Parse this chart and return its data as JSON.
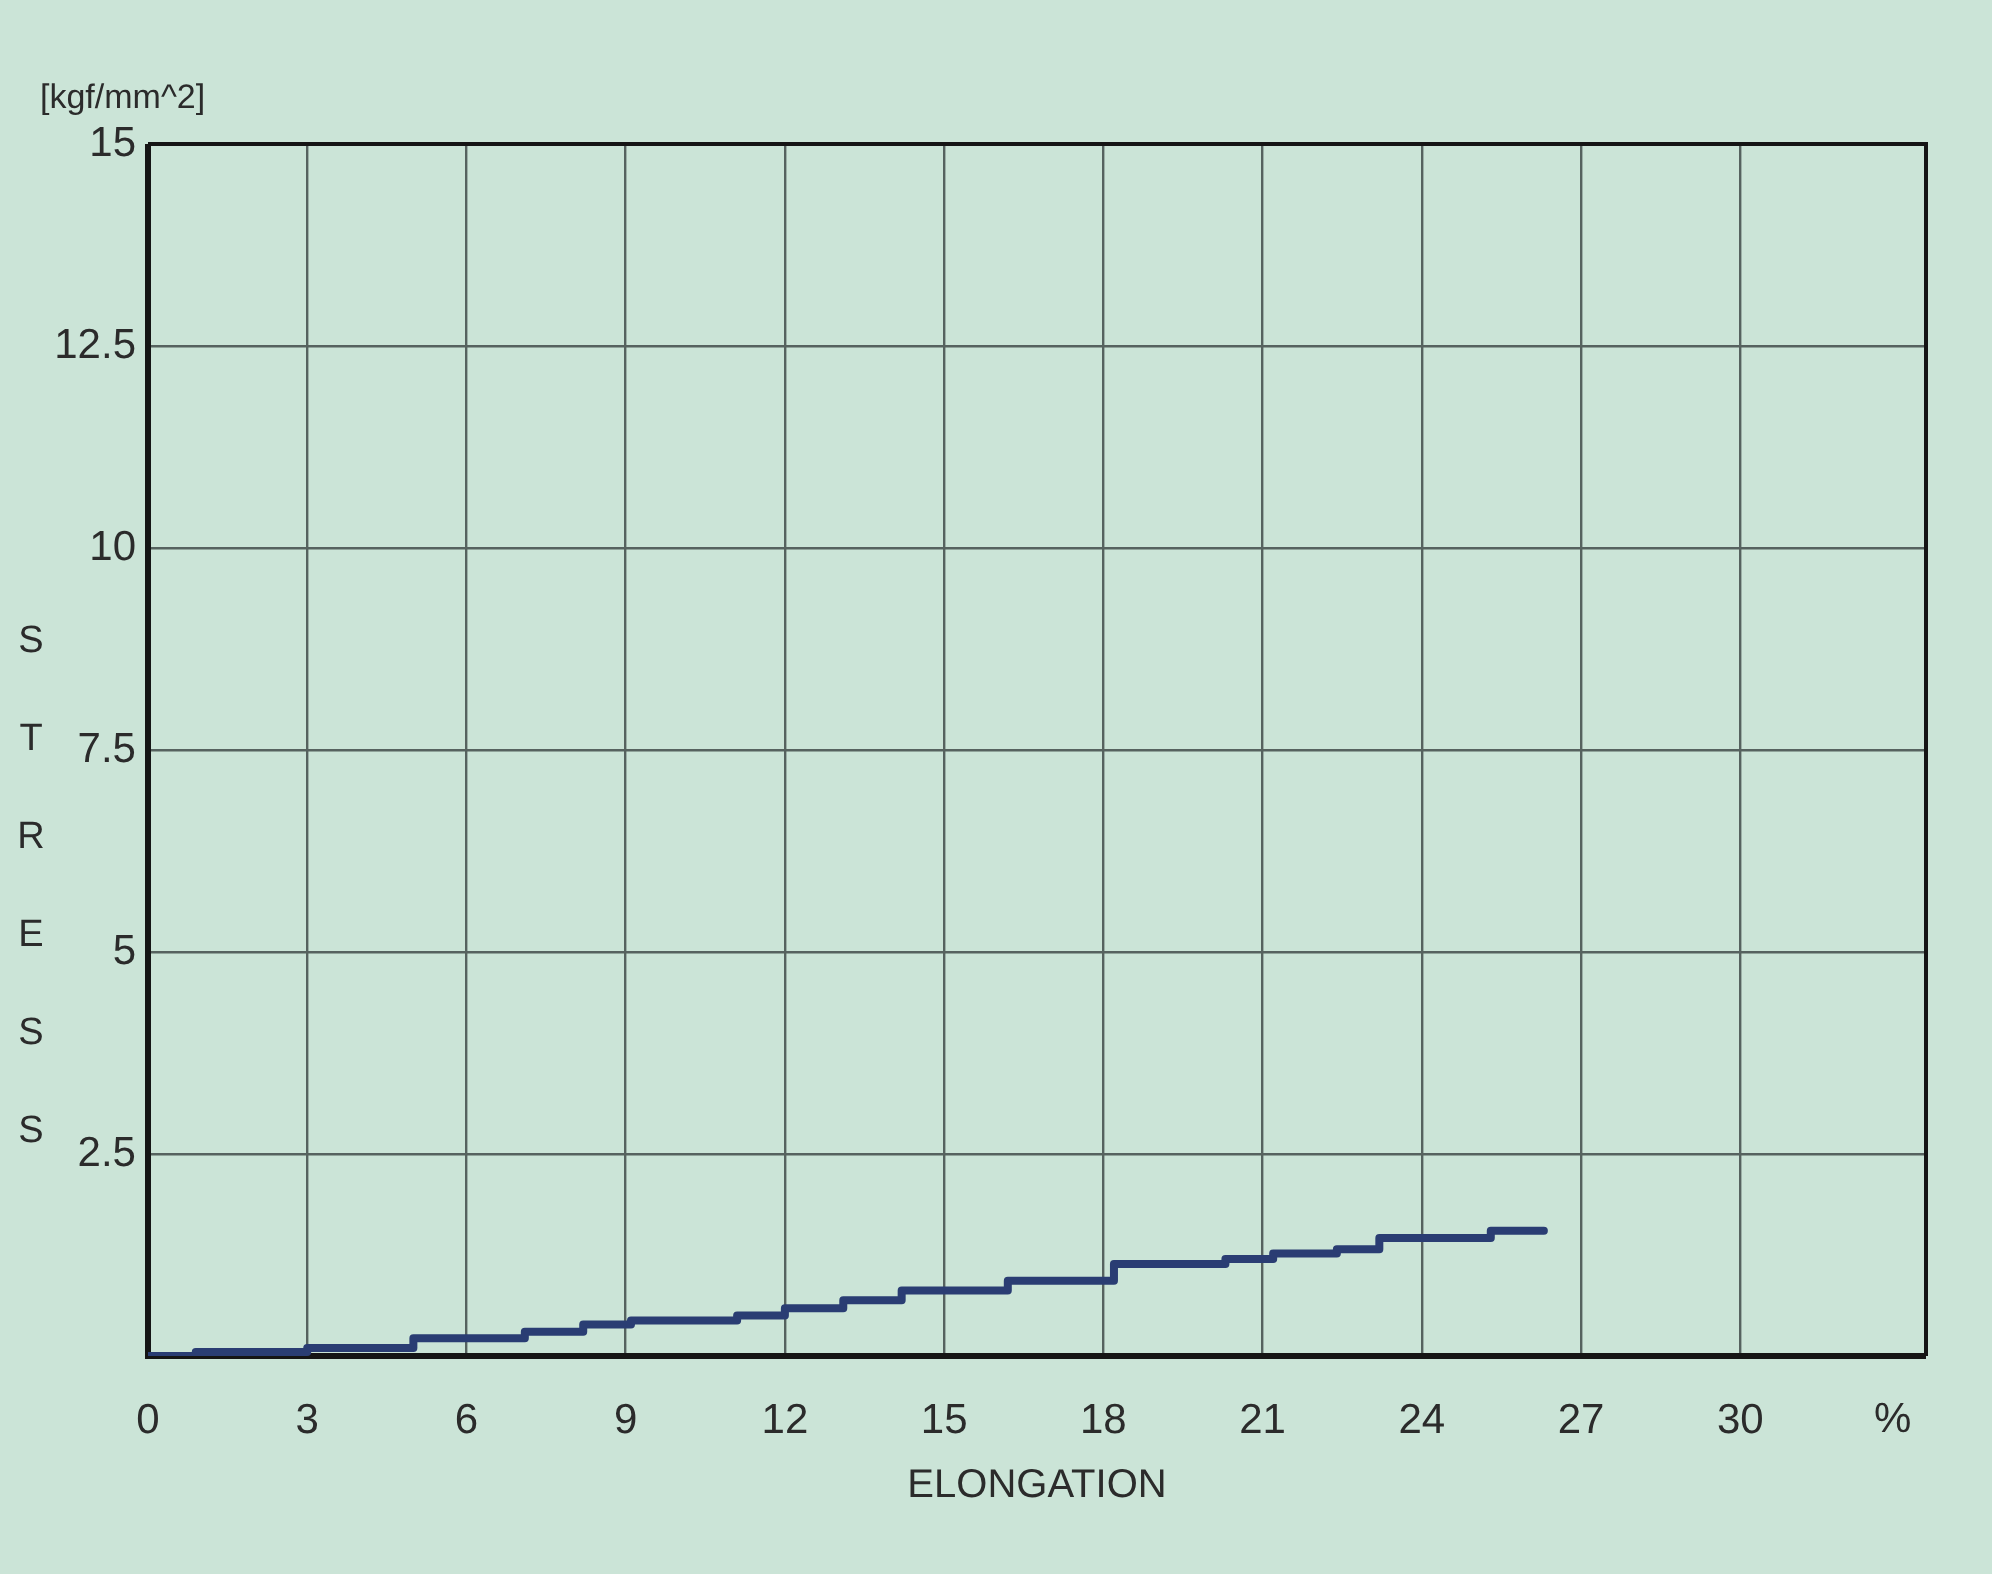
{
  "chart_data": {
    "type": "step",
    "xlabel": "ELONGATION",
    "ylabel": "STRESS",
    "annotations": [
      "[kgf/mm^2]",
      "%"
    ],
    "x": [
      0,
      0.9,
      3.0,
      5.0,
      7.1,
      8.2,
      9.1,
      11.1,
      12.0,
      13.1,
      14.2,
      16.2,
      18.2,
      20.3,
      21.2,
      22.4,
      23.2,
      25.3,
      26.3
    ],
    "series": [
      {
        "color": "#2a3d73",
        "values": [
          0,
          0.05,
          0.1,
          0.22,
          0.3,
          0.39,
          0.44,
          0.5,
          0.59,
          0.69,
          0.81,
          0.93,
          1.14,
          1.2,
          1.27,
          1.32,
          1.46,
          1.55,
          1.55
        ]
      }
    ],
    "xlim": [
      0,
      33.5
    ],
    "ylim": [
      0,
      15
    ],
    "xticks": [
      0,
      3,
      6,
      9,
      12,
      15,
      18,
      21,
      24,
      27,
      30
    ],
    "yticks": [
      {
        "value": 0,
        "label": null
      },
      2.5,
      5,
      7.5,
      10,
      12.5,
      15
    ],
    "grid": true,
    "line_style": "solid"
  }
}
